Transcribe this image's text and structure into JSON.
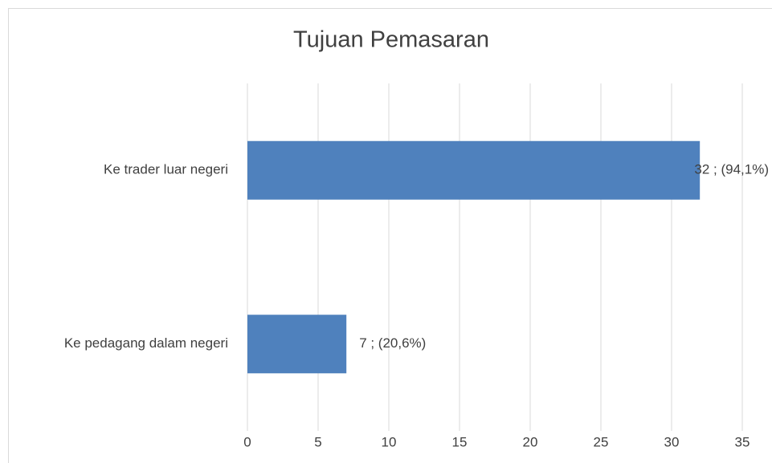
{
  "chart_data": {
    "type": "bar",
    "orientation": "horizontal",
    "title": "Tujuan Pemasaran",
    "categories": [
      "Ke trader luar negeri",
      "Ke pedagang dalam negeri"
    ],
    "values": [
      32,
      7
    ],
    "value_labels": [
      "32 ; (94,1%)",
      "7 ; (20,6%)"
    ],
    "color": "#4f81bd",
    "xlim": [
      0,
      35
    ],
    "xticks": [
      0,
      5,
      10,
      15,
      20,
      25,
      30,
      35
    ],
    "grid": true
  }
}
